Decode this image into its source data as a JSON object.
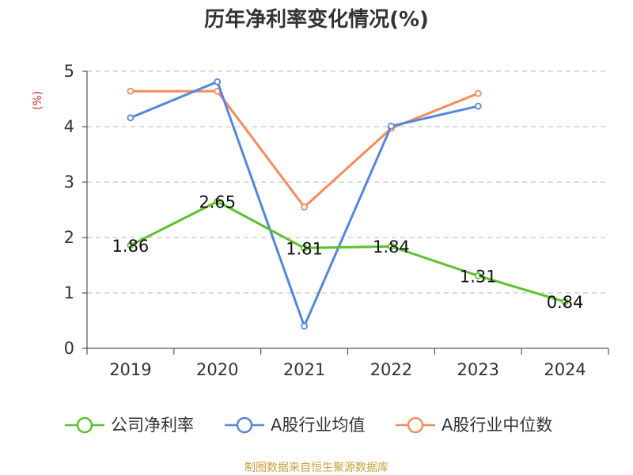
{
  "chart_data": {
    "type": "line",
    "title": "历年净利率变化情况(%)",
    "ylabel": "(%)",
    "xlabel": "",
    "ylim": [
      0,
      5
    ],
    "yticks": [
      0,
      1,
      2,
      3,
      4,
      5
    ],
    "categories": [
      "2019",
      "2020",
      "2021",
      "2022",
      "2023",
      "2024"
    ],
    "grid": true,
    "legend_position": "bottom",
    "series": [
      {
        "name": "公司净利率",
        "color": "#5cc12a",
        "values": [
          1.86,
          2.65,
          1.81,
          1.84,
          1.31,
          0.84
        ],
        "labels": [
          "1.86",
          "2.65",
          "1.81",
          "1.84",
          "1.31",
          "0.84"
        ]
      },
      {
        "name": "A股行业均值",
        "color": "#5585dd",
        "values": [
          4.16,
          4.81,
          0.4,
          4.01,
          4.37,
          null
        ]
      },
      {
        "name": "A股行业中位数",
        "color": "#f58b5a",
        "values": [
          4.64,
          4.64,
          2.55,
          3.97,
          4.6,
          null
        ]
      }
    ]
  },
  "source_text": "制图数据来自恒生聚源数据库"
}
